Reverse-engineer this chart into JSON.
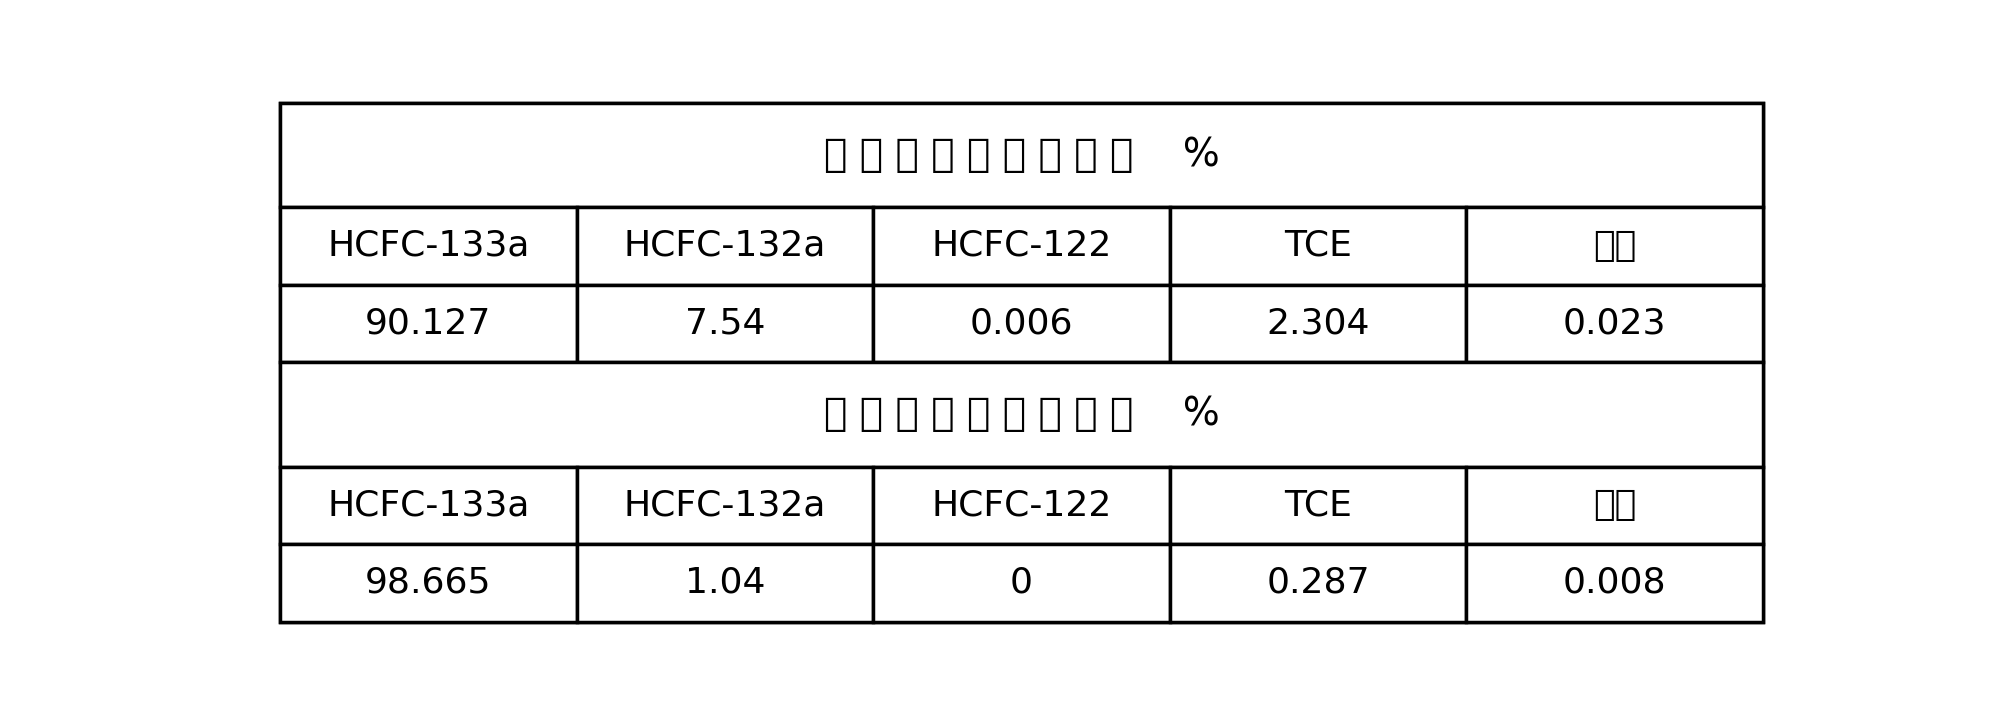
{
  "title1": "反应回流塔排气组成    %",
  "title2": "分离塔塔中出料组成    %",
  "title1_spaced": "反 应 回 流 塔 排 气 组 成    %",
  "title2_spaced": "分 离 塔 塔 中 出 料 组 成    %",
  "headers": [
    "HCFC-133a",
    "HCFC-132a",
    "HCFC-122",
    "TCE",
    "其它"
  ],
  "row1": [
    "90.127",
    "7.54",
    "0.006",
    "2.304",
    "0.023"
  ],
  "row2": [
    "98.665",
    "1.04",
    "0",
    "0.287",
    "0.008"
  ],
  "bg_color": "#ffffff",
  "text_color": "#000000",
  "line_color": "#000000",
  "font_size_title": 28,
  "font_size_cell": 26,
  "figsize": [
    19.93,
    7.17
  ],
  "dpi": 100
}
